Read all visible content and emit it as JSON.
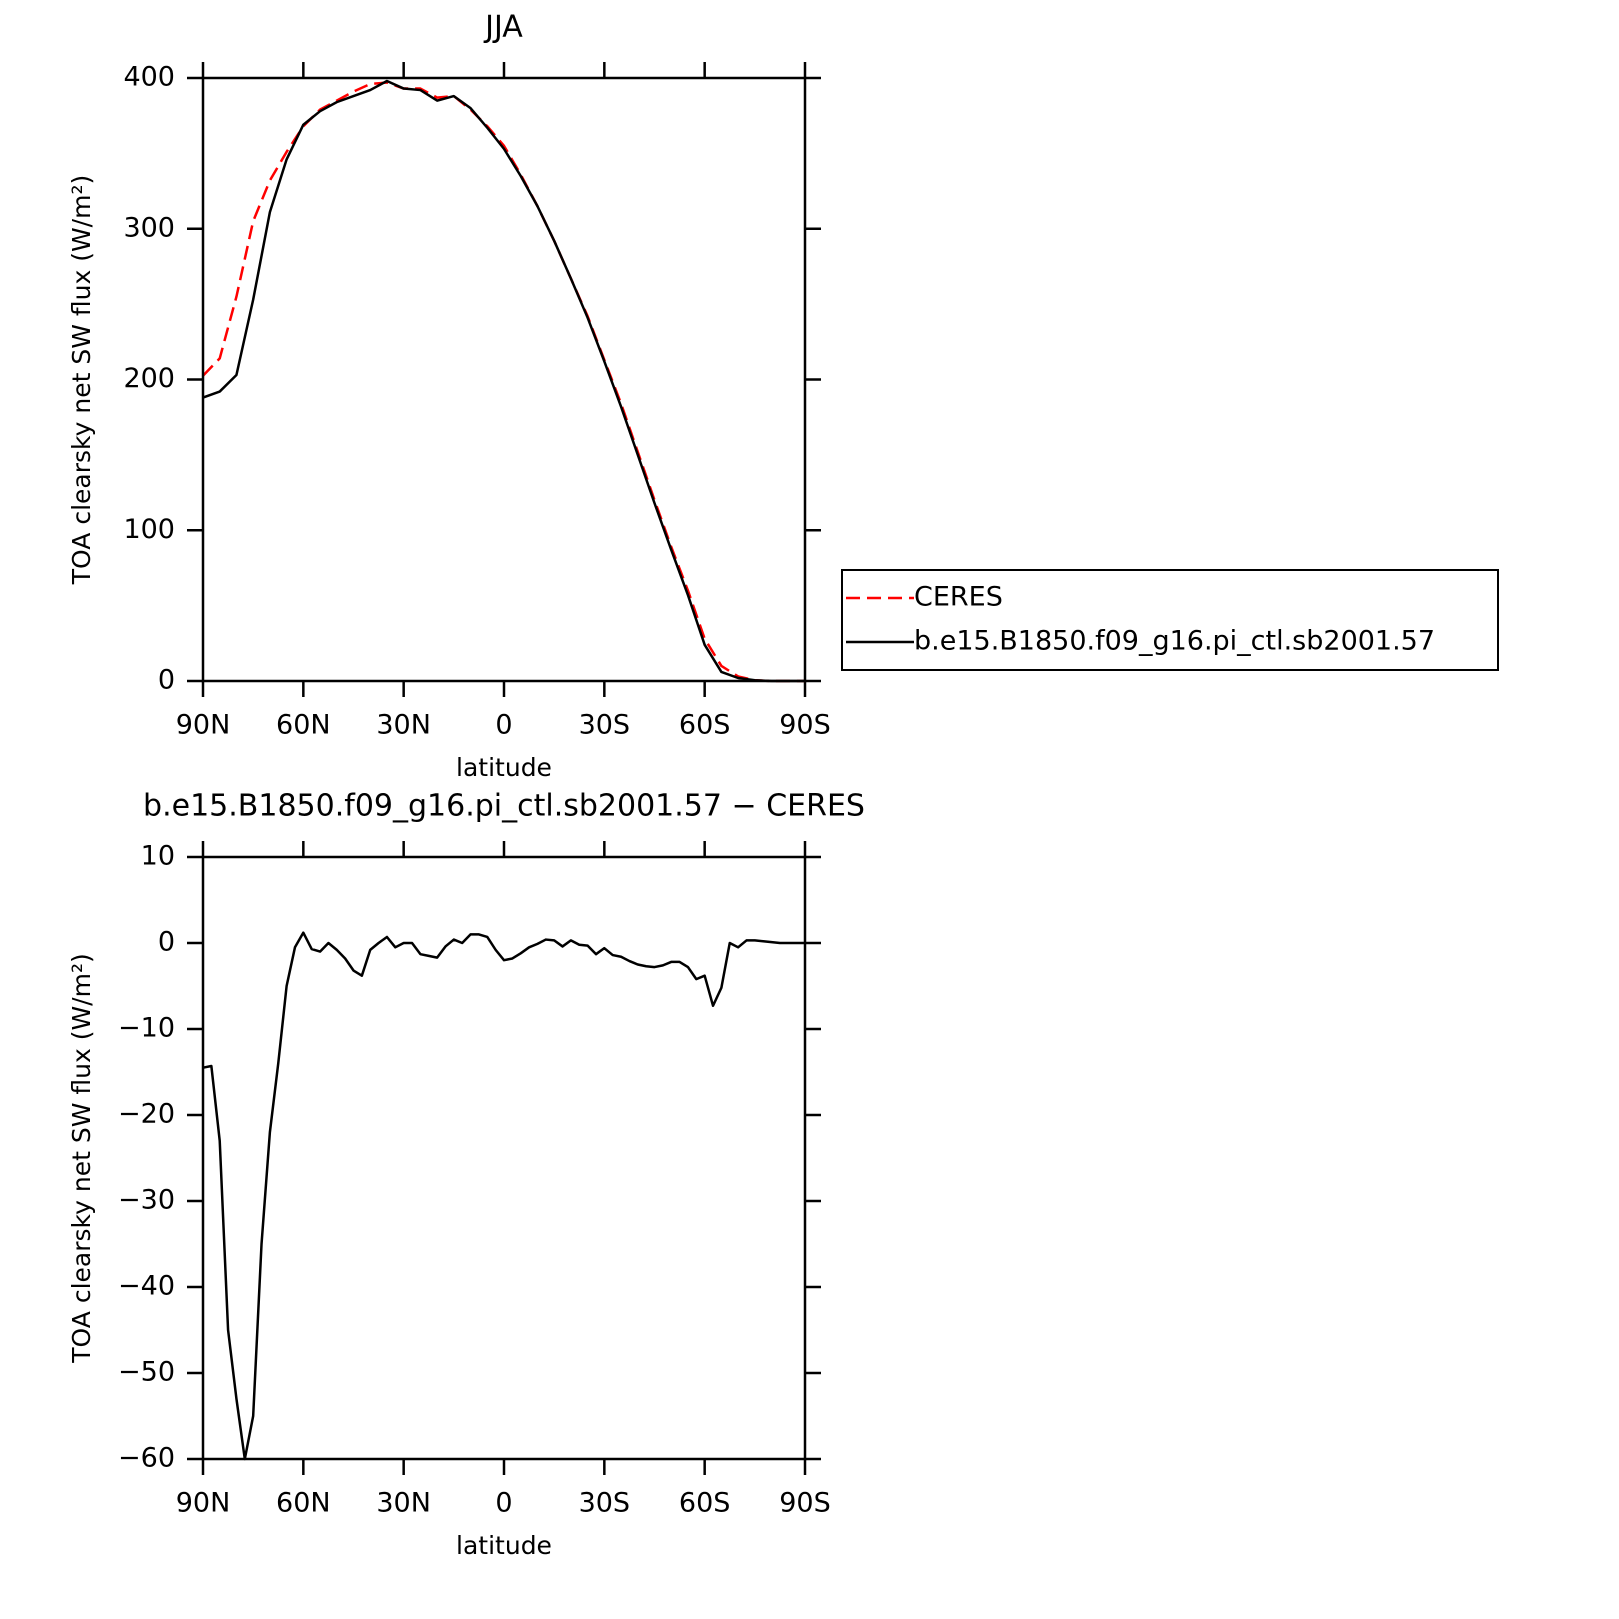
{
  "chart_data": [
    {
      "type": "line",
      "title": "JJA",
      "xlabel": "latitude",
      "ylabel": "TOA clearsky net SW flux (W/m²)",
      "x": [
        90,
        85,
        80,
        75,
        70,
        65,
        60,
        55,
        50,
        45,
        40,
        35,
        30,
        25,
        20,
        15,
        10,
        5,
        0,
        -5,
        -10,
        -15,
        -20,
        -25,
        -30,
        -35,
        -40,
        -45,
        -50,
        -55,
        -60,
        -65,
        -70,
        -75,
        -80,
        -85,
        -90
      ],
      "series": [
        {
          "name": "CERES",
          "color": "#ff0000",
          "dash": true,
          "values": [
            202.5,
            214,
            255,
            305,
            332,
            351,
            368,
            379,
            385,
            391,
            396,
            397,
            393,
            393,
            387,
            388,
            379,
            368,
            355,
            336,
            315,
            292,
            267,
            242,
            213,
            184,
            152,
            120,
            89,
            60,
            28,
            10,
            3,
            0.5,
            0,
            0,
            0
          ]
        },
        {
          "name": "b.e15.B1850.f09_g16.pi_ctl.sb2001.57",
          "color": "#000000",
          "dash": false,
          "values": [
            188,
            192,
            203,
            253,
            311,
            346,
            369,
            378,
            384,
            388,
            392,
            398,
            393,
            392,
            385,
            388,
            380,
            367,
            353,
            335,
            315,
            292,
            267,
            241,
            212,
            182,
            150,
            118,
            87,
            57,
            24,
            6,
            2,
            0.5,
            0,
            0,
            0
          ]
        }
      ],
      "xlim": [
        90,
        -90
      ],
      "xticks": [
        {
          "value": 90,
          "label": "90N"
        },
        {
          "value": 60,
          "label": "60N"
        },
        {
          "value": 30,
          "label": "30N"
        },
        0,
        {
          "value": -30,
          "label": "30S"
        },
        {
          "value": -60,
          "label": "60S"
        },
        {
          "value": -90,
          "label": "90S"
        }
      ],
      "ylim": [
        0,
        400
      ],
      "yticks": [
        0,
        100,
        200,
        300,
        400
      ],
      "legend": "right"
    },
    {
      "type": "line",
      "title": "b.e15.B1850.f09_g16.pi_ctl.sb2001.57 − CERES",
      "xlabel": "latitude",
      "ylabel": "TOA clearsky net SW flux (W/m²)",
      "x": [
        90,
        87.5,
        85,
        82.5,
        80,
        77.5,
        75,
        72.5,
        70,
        67.5,
        65,
        62.5,
        60,
        57.5,
        55,
        52.5,
        50,
        47.5,
        45,
        42.5,
        40,
        37.5,
        35,
        32.5,
        30,
        27.5,
        25,
        22.5,
        20,
        17.5,
        15,
        12.5,
        10,
        7.5,
        5,
        2.5,
        0,
        -2.5,
        -5,
        -7.5,
        -10,
        -12.5,
        -15,
        -17.5,
        -20,
        -22.5,
        -25,
        -27.5,
        -30,
        -32.5,
        -35,
        -37.5,
        -40,
        -42.5,
        -45,
        -47.5,
        -50,
        -52.5,
        -55,
        -57.5,
        -60,
        -62.5,
        -65,
        -67.5,
        -70,
        -72.5,
        -75,
        -77.5,
        -80,
        -82.5,
        -85,
        -87.5,
        -90
      ],
      "values": [
        -14.5,
        -14.3,
        -23,
        -45,
        -53,
        -60,
        -55,
        -35,
        -22,
        -14,
        -5,
        -0.5,
        1.2,
        -0.7,
        -1,
        0,
        -0.8,
        -1.8,
        -3.2,
        -3.8,
        -0.8,
        0,
        0.7,
        -0.5,
        0,
        0,
        -1.3,
        -1.5,
        -1.7,
        -0.4,
        0.4,
        0,
        1,
        1,
        0.7,
        -0.8,
        -2,
        -1.8,
        -1.2,
        -0.5,
        -0.1,
        0.4,
        0.3,
        -0.4,
        0.3,
        -0.2,
        -0.3,
        -1.3,
        -0.6,
        -1.4,
        -1.6,
        -2.1,
        -2.5,
        -2.7,
        -2.8,
        -2.6,
        -2.2,
        -2.2,
        -2.8,
        -4.2,
        -3.8,
        -7.3,
        -5.2,
        0,
        -0.5,
        0.3,
        0.3,
        0.2,
        0.1,
        0,
        0,
        0,
        0
      ],
      "color": "#000000",
      "xlim": [
        90,
        -90
      ],
      "xticks": [
        {
          "value": 90,
          "label": "90N"
        },
        {
          "value": 60,
          "label": "60N"
        },
        {
          "value": 30,
          "label": "30N"
        },
        0,
        {
          "value": -30,
          "label": "30S"
        },
        {
          "value": -60,
          "label": "60S"
        },
        {
          "value": -90,
          "label": "90S"
        }
      ],
      "ylim": [
        -60,
        10
      ],
      "yticks": [
        {
          "value": -60,
          "label": "−60"
        },
        {
          "value": -50,
          "label": "−50"
        },
        {
          "value": -40,
          "label": "−40"
        },
        {
          "value": -30,
          "label": "−30"
        },
        {
          "value": -20,
          "label": "−20"
        },
        {
          "value": -10,
          "label": "−10"
        },
        0,
        10
      ]
    }
  ]
}
